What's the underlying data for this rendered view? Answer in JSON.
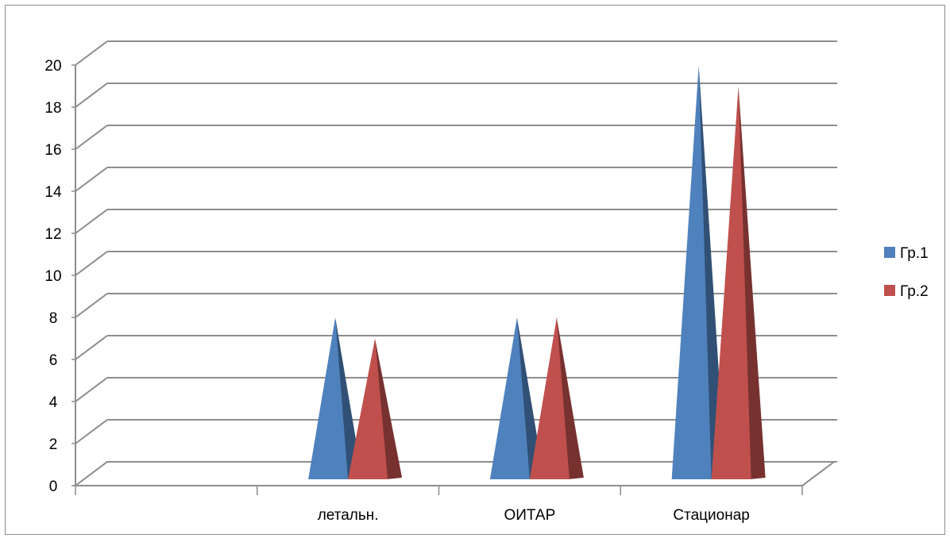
{
  "chart_data": {
    "type": "bar",
    "bar_shape": "pyramid-3d",
    "categories": [
      "",
      "летальн.",
      "ОИТАР",
      "Стационар"
    ],
    "series": [
      {
        "name": "Гр.1",
        "values": [
          0,
          8,
          8,
          20
        ],
        "color": "#4F81BD"
      },
      {
        "name": "Гр.2",
        "values": [
          0,
          7,
          8,
          19
        ],
        "color": "#C0504D"
      }
    ],
    "y_ticks": [
      "0",
      "2",
      "4",
      "6",
      "8",
      "10",
      "12",
      "14",
      "16",
      "18",
      "20"
    ],
    "ylim": [
      0,
      20
    ],
    "grid": true,
    "legend_position": "right",
    "title": "",
    "xlabel": "",
    "ylabel": ""
  }
}
